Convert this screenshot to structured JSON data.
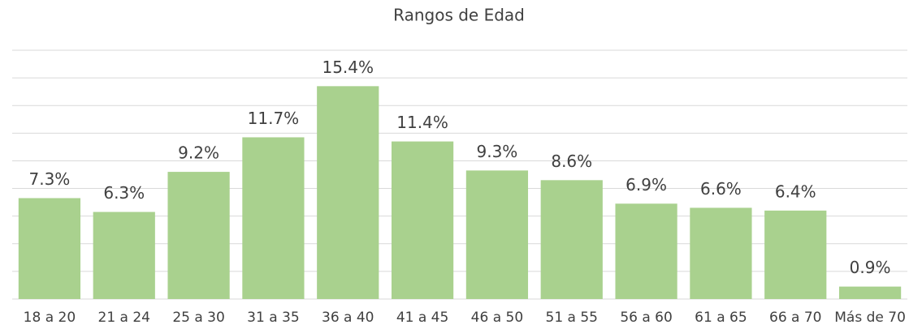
{
  "chart_data": {
    "type": "bar",
    "title": "Rangos de Edad",
    "categories": [
      "18 a 20",
      "21 a 24",
      "25 a 30",
      "31 a 35",
      "36 a 40",
      "41 a 45",
      "46 a 50",
      "51 a 55",
      "56 a 60",
      "61 a 65",
      "66 a 70",
      "Más de 70"
    ],
    "values": [
      7.3,
      6.3,
      9.2,
      11.7,
      15.4,
      11.4,
      9.3,
      8.6,
      6.9,
      6.6,
      6.4,
      0.9
    ],
    "value_labels": [
      "7.3%",
      "6.3%",
      "9.2%",
      "11.7%",
      "15.4%",
      "11.4%",
      "9.3%",
      "8.6%",
      "6.9%",
      "6.6%",
      "6.4%",
      "0.9%"
    ],
    "color": "#a9d18e",
    "ylim": [
      0,
      18
    ],
    "yticks": [
      0,
      2,
      4,
      6,
      8,
      10,
      12,
      14,
      16,
      18
    ],
    "grid": true
  }
}
